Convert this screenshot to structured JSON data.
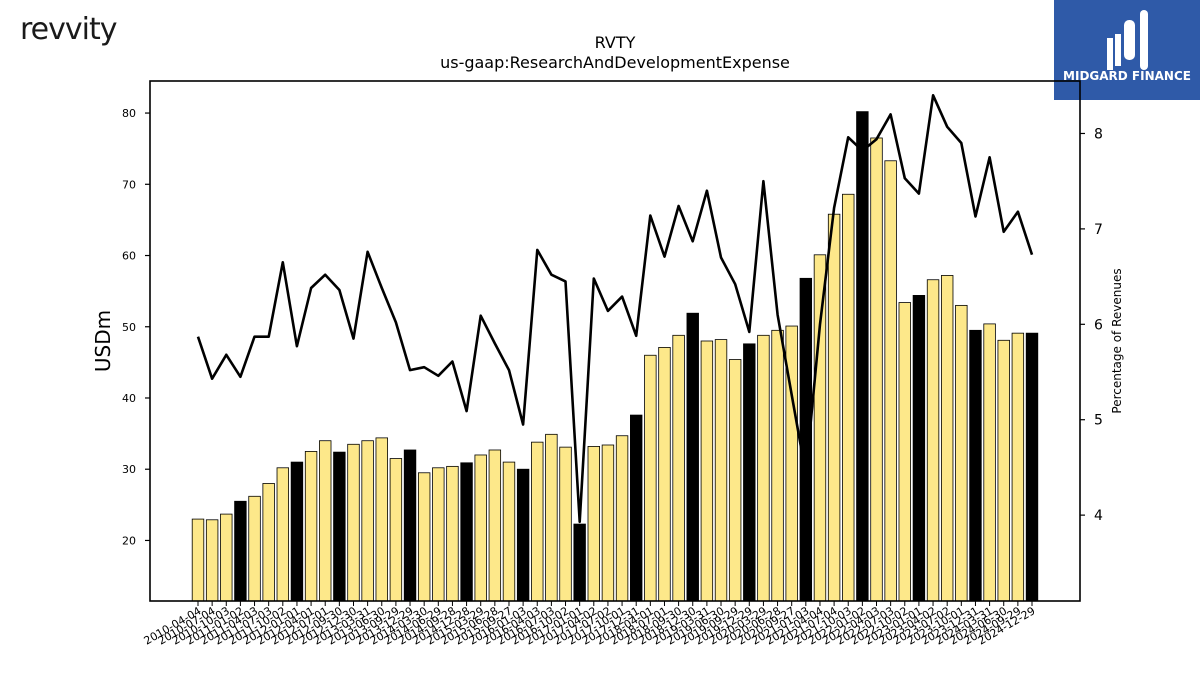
{
  "header": {
    "company_logo_text": "revvity",
    "brand_name": "MIDGARD FINANCE"
  },
  "chart_data": {
    "type": "bar",
    "title": "RVTY",
    "subtitle": "us-gaap:ResearchAndDevelopmentExpense",
    "ylabel": "USDm",
    "y2label": "Percentage of Revenues",
    "ylim": [
      11.5,
      84.5
    ],
    "y2lim": [
      3.1,
      8.55
    ],
    "yticks": [
      20,
      30,
      40,
      50,
      60,
      70,
      80
    ],
    "y2ticks": [
      4,
      5,
      6,
      7,
      8
    ],
    "colors": {
      "bar_regular": "#fde88a",
      "bar_fiscal_q4": "#000000",
      "line": "#000000"
    },
    "categories": [
      "2010-04-04",
      "2010-07-04",
      "2010-10-03",
      "2011-01-02",
      "2011-04-03",
      "2011-07-03",
      "2011-10-02",
      "2012-01-01",
      "2012-04-01",
      "2012-07-01",
      "2012-09-30",
      "2012-12-30",
      "2013-03-31",
      "2013-06-30",
      "2013-09-29",
      "2013-12-29",
      "2014-03-30",
      "2014-06-29",
      "2014-09-28",
      "2014-12-28",
      "2015-03-29",
      "2015-06-28",
      "2015-09-27",
      "2016-01-03",
      "2016-04-03",
      "2016-07-03",
      "2016-10-02",
      "2017-01-01",
      "2017-04-02",
      "2017-07-02",
      "2017-10-01",
      "2017-12-31",
      "2018-04-01",
      "2018-07-01",
      "2018-09-30",
      "2018-12-30",
      "2019-03-31",
      "2019-06-30",
      "2019-09-29",
      "2019-12-29",
      "2020-03-29",
      "2020-06-28",
      "2020-09-27",
      "2021-01-03",
      "2021-04-04",
      "2021-07-04",
      "2021-10-03",
      "2022-01-02",
      "2022-04-03",
      "2022-07-03",
      "2022-10-02",
      "2023-01-01",
      "2023-04-02",
      "2023-07-02",
      "2023-10-01",
      "2023-12-31",
      "2024-03-31",
      "2024-06-30",
      "2024-09-29",
      "2024-12-29"
    ],
    "series": [
      {
        "name": "",
        "type": "bar",
        "values": [
          23.0,
          22.9,
          23.7,
          25.5,
          26.2,
          28.0,
          30.2,
          31.0,
          32.5,
          34.0,
          32.4,
          33.5,
          34.0,
          34.4,
          31.5,
          32.7,
          29.5,
          30.2,
          30.4,
          30.9,
          32.0,
          32.7,
          31.0,
          30.0,
          33.8,
          34.9,
          33.1,
          22.3,
          33.2,
          33.4,
          34.7,
          37.6,
          46.0,
          47.1,
          48.8,
          51.9,
          48.0,
          48.2,
          45.4,
          47.6,
          48.8,
          49.5,
          50.1,
          56.8,
          60.1,
          65.8,
          68.6,
          80.2,
          76.5,
          73.3,
          53.4,
          54.4,
          56.6,
          57.2,
          53.0,
          49.5,
          50.4,
          48.1,
          49.1,
          49.1
        ],
        "highlight_black": [
          3,
          7,
          10,
          15,
          19,
          23,
          27,
          31,
          35,
          39,
          43,
          47,
          51,
          55,
          59
        ]
      },
      {
        "name": "",
        "type": "line",
        "axis": "right",
        "values": [
          5.87,
          5.43,
          5.68,
          5.45,
          5.87,
          5.87,
          6.65,
          5.77,
          6.38,
          6.52,
          6.36,
          5.85,
          6.76,
          6.38,
          6.02,
          5.52,
          5.55,
          5.46,
          5.61,
          5.09,
          6.09,
          5.8,
          5.52,
          4.95,
          6.78,
          6.52,
          6.45,
          3.93,
          6.48,
          6.14,
          6.29,
          5.88,
          7.14,
          6.71,
          7.24,
          6.87,
          7.4,
          6.7,
          6.42,
          5.92,
          7.5,
          6.1,
          5.26,
          4.43,
          6.0,
          7.22,
          7.96,
          7.82,
          7.94,
          8.2,
          7.53,
          7.37,
          8.4,
          8.07,
          7.9,
          7.13,
          7.75,
          6.97,
          7.18,
          6.73
        ]
      }
    ]
  }
}
